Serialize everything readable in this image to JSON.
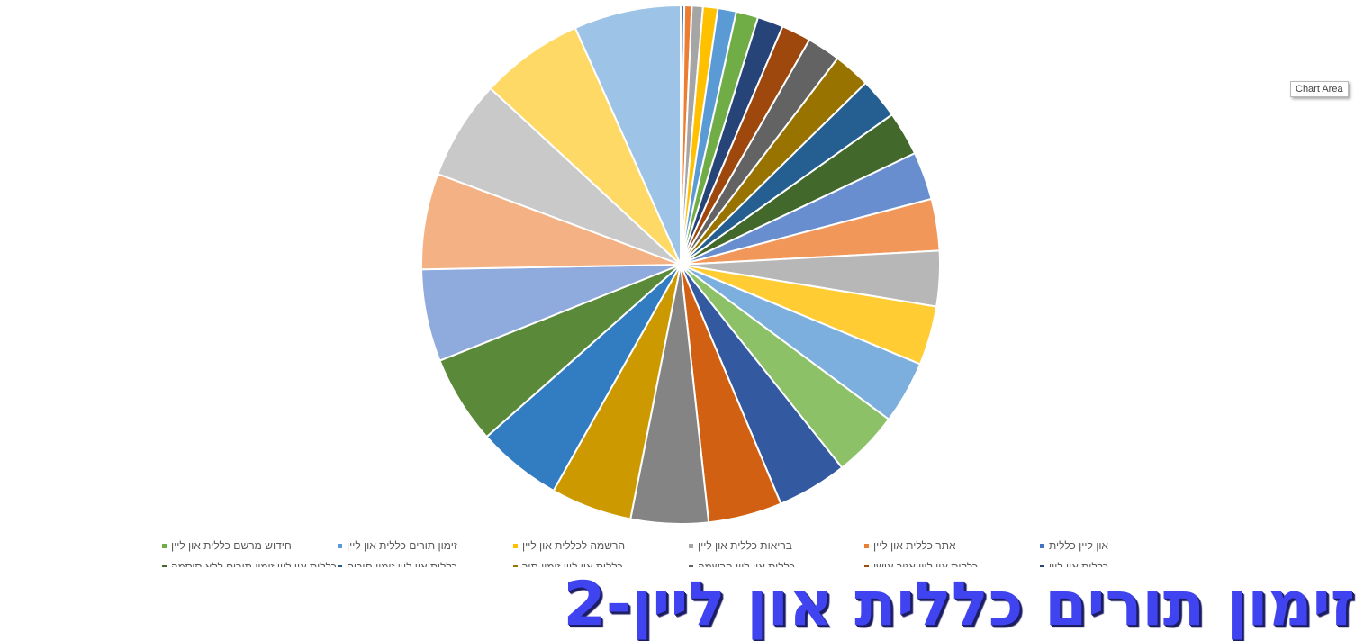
{
  "chart_area_tooltip": "Chart Area",
  "title": "זימון תורים כללית און ליין-2",
  "chart_data": {
    "type": "pie",
    "slices": [
      {
        "name": "און ליין כללית",
        "value": 0.3,
        "color": "#4472c4"
      },
      {
        "name": "אתר כללית און ליין",
        "value": 0.6,
        "color": "#ed7d31"
      },
      {
        "name": "בריאות כללית און ליין",
        "value": 0.9,
        "color": "#a5a5a5"
      },
      {
        "name": "הרשמה לכללית און ליין",
        "value": 1.2,
        "color": "#ffc000"
      },
      {
        "name": "זימון תורים כללית און ליין",
        "value": 1.5,
        "color": "#5b9bd5"
      },
      {
        "name": "חידוש מרשם כללית און ליין",
        "value": 1.8,
        "color": "#70ad47"
      },
      {
        "name": "כללית און ליין",
        "value": 2.1,
        "color": "#264478"
      },
      {
        "name": "כללית און ליין אזור אישי",
        "value": 2.4,
        "color": "#9e480e"
      },
      {
        "name": "כללית און ליין הרשמה",
        "value": 2.7,
        "color": "#636363"
      },
      {
        "name": "כללית און ליין זימון תור",
        "value": 3.0,
        "color": "#997300"
      },
      {
        "name": "כללית און ליין זימון תורים",
        "value": 3.3,
        "color": "#255e91"
      },
      {
        "name": "כללית און ליין זימון תורים ללא סיסמה",
        "value": 3.6,
        "color": "#43682b"
      },
      {
        "name": "",
        "value": 3.9,
        "color": "#698ed0"
      },
      {
        "name": "",
        "value": 4.2,
        "color": "#f1975a"
      },
      {
        "name": "",
        "value": 4.5,
        "color": "#b7b7b7"
      },
      {
        "name": "",
        "value": 4.8,
        "color": "#ffcd33"
      },
      {
        "name": "",
        "value": 5.1,
        "color": "#7cafdd"
      },
      {
        "name": "",
        "value": 5.4,
        "color": "#8cc168"
      },
      {
        "name": "",
        "value": 5.7,
        "color": "#335aa1"
      },
      {
        "name": "",
        "value": 6.0,
        "color": "#d26012"
      },
      {
        "name": "",
        "value": 6.3,
        "color": "#848484"
      },
      {
        "name": "",
        "value": 6.6,
        "color": "#cc9a00"
      },
      {
        "name": "",
        "value": 6.9,
        "color": "#327dc2"
      },
      {
        "name": "",
        "value": 7.2,
        "color": "#5a8a39"
      },
      {
        "name": "",
        "value": 7.5,
        "color": "#8faadc"
      },
      {
        "name": "",
        "value": 7.8,
        "color": "#f4b183"
      },
      {
        "name": "",
        "value": 8.1,
        "color": "#c9c9c9"
      },
      {
        "name": "",
        "value": 8.4,
        "color": "#ffd966"
      },
      {
        "name": "",
        "value": 8.7,
        "color": "#9dc3e6"
      }
    ],
    "legend_position": "bottom",
    "start_angle_deg": 0,
    "direction": "clockwise"
  }
}
